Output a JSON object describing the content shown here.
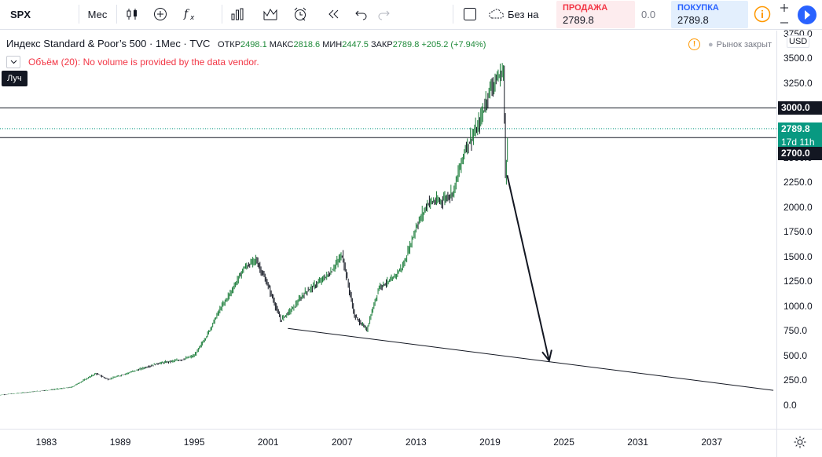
{
  "toolbar": {
    "symbol": "SPX",
    "interval": "Мес",
    "no_broker_label": "Без на"
  },
  "trade": {
    "sell_label": "ПРОДАЖА",
    "sell_price": "2789.8",
    "spread": "0.0",
    "buy_label": "ПОКУПКА",
    "buy_price": "2789.8"
  },
  "legend": {
    "title": "Индекс Standard & Poor’s 500 · 1Мес · TVC",
    "open_label": "ОТКР",
    "open_value": "2498.1",
    "high_label": "МАКС",
    "high_value": "2818.6",
    "low_label": "МИН",
    "low_value": "2447.5",
    "close_label": "ЗАКР",
    "close_value": "2789.8",
    "change": "+205.2 (+7.94%)",
    "volume_text": "Объём (20): No volume is provided by the data vendor.",
    "ray_tooltip": "Луч",
    "market_status": "Рынок закрыт"
  },
  "price_scale": {
    "currency": "USD",
    "ticks": [
      "3750.0",
      "3500.0",
      "3250.0",
      "3000.0",
      "2750.0",
      "2500.0",
      "2250.0",
      "2000.0",
      "1750.0",
      "1500.0",
      "1250.0",
      "1000.0",
      "750.0",
      "500.0",
      "250.0",
      "0.0"
    ],
    "tags": {
      "line_upper": "3000.0",
      "last_price": "2789.8",
      "countdown": "17d 11h",
      "line_lower": "2700.0"
    }
  },
  "time_scale": {
    "ticks": [
      "1983",
      "1989",
      "1995",
      "2001",
      "2007",
      "2013",
      "2019",
      "2025",
      "2031",
      "2037"
    ]
  },
  "colors": {
    "up": "#26a69a",
    "down": "#131722",
    "last_price": "#089981",
    "sell": "#f23645",
    "buy": "#2962ff",
    "accent": "#2962ff"
  },
  "chart_data": {
    "type": "line",
    "series": [
      {
        "x": [
          1979,
          1981,
          1983,
          1985,
          1987,
          1988,
          1990,
          1992,
          1994,
          1995,
          1996,
          1997,
          1998,
          1999,
          2000,
          2001,
          2002,
          2003,
          2004,
          2005,
          2006,
          2007,
          2008,
          2009,
          2010,
          2011,
          2012,
          2013,
          2014,
          2015,
          2016,
          2017,
          2018,
          2019,
          2020.1,
          2020.25,
          2020.45
        ],
        "y": [
          100,
          125,
          150,
          180,
          320,
          260,
          340,
          420,
          460,
          500,
          700,
          950,
          1150,
          1380,
          1470,
          1200,
          860,
          980,
          1140,
          1230,
          1330,
          1520,
          900,
          760,
          1200,
          1260,
          1420,
          1800,
          2050,
          2060,
          2150,
          2600,
          2800,
          3200,
          3380,
          2300,
          2789.8
        ]
      }
    ],
    "ylim": [
      0,
      3750
    ],
    "xlim": [
      1979,
      2042
    ],
    "annotations": {
      "horizontal_lines": [
        3000,
        2700
      ],
      "support_ray": {
        "x1": 2002.6,
        "y1": 775,
        "x2": 2042,
        "y2": 150
      },
      "arrow": {
        "x1": 2020.4,
        "y1": 2320,
        "x2": 2023.8,
        "y2": 450
      }
    }
  }
}
